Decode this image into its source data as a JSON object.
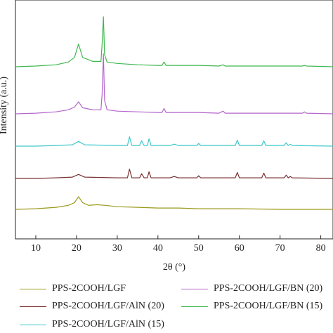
{
  "chart_data": {
    "type": "line",
    "xlabel": "2θ (°)",
    "ylabel": "Intensity (a.u.)",
    "xlim": [
      5,
      83
    ],
    "xticks": [
      10,
      20,
      30,
      40,
      50,
      60,
      70,
      80
    ],
    "series": [
      {
        "name": "PPS-2COOH/LGF",
        "color": "#9a9a1c",
        "points": [
          [
            5,
            0
          ],
          [
            10,
            1
          ],
          [
            15,
            3
          ],
          [
            18,
            6
          ],
          [
            19.5,
            10
          ],
          [
            20.5,
            19
          ],
          [
            21.5,
            10
          ],
          [
            23,
            6
          ],
          [
            25,
            7
          ],
          [
            27,
            6
          ],
          [
            30,
            4
          ],
          [
            35,
            3
          ],
          [
            40,
            2
          ],
          [
            45,
            2
          ],
          [
            50,
            1
          ],
          [
            60,
            1
          ],
          [
            70,
            0
          ],
          [
            83,
            0
          ]
        ]
      },
      {
        "name": "PPS-2COOH/LGF/AlN (20)",
        "color": "#7a3030",
        "points": [
          [
            5,
            0
          ],
          [
            10,
            0
          ],
          [
            15,
            1
          ],
          [
            19,
            2
          ],
          [
            20.5,
            6
          ],
          [
            22,
            2
          ],
          [
            30,
            1
          ],
          [
            32.5,
            1
          ],
          [
            33,
            14
          ],
          [
            33.6,
            1
          ],
          [
            35.5,
            1
          ],
          [
            36,
            7
          ],
          [
            36.6,
            1
          ],
          [
            37.4,
            1
          ],
          [
            37.8,
            10
          ],
          [
            38.3,
            1
          ],
          [
            43,
            1
          ],
          [
            44,
            3
          ],
          [
            45,
            1
          ],
          [
            49.5,
            1
          ],
          [
            50,
            4
          ],
          [
            50.5,
            1
          ],
          [
            59,
            1
          ],
          [
            59.5,
            9
          ],
          [
            60,
            1
          ],
          [
            65.5,
            1
          ],
          [
            66,
            8
          ],
          [
            66.5,
            1
          ],
          [
            71,
            1
          ],
          [
            71.5,
            5
          ],
          [
            72,
            1
          ],
          [
            72.5,
            3
          ],
          [
            73,
            1
          ],
          [
            83,
            0
          ]
        ]
      },
      {
        "name": "PPS-2COOH/LGF/AlN (15)",
        "color": "#3ec8c8",
        "points": [
          [
            5,
            0
          ],
          [
            10,
            0
          ],
          [
            15,
            1
          ],
          [
            19,
            2
          ],
          [
            20.5,
            7
          ],
          [
            22,
            2
          ],
          [
            30,
            1
          ],
          [
            32.5,
            1
          ],
          [
            33,
            14
          ],
          [
            33.6,
            1
          ],
          [
            35.5,
            1
          ],
          [
            36,
            8
          ],
          [
            36.6,
            1
          ],
          [
            37.4,
            1
          ],
          [
            37.8,
            11
          ],
          [
            38.3,
            1
          ],
          [
            43,
            1
          ],
          [
            44,
            3
          ],
          [
            45,
            1
          ],
          [
            49.5,
            1
          ],
          [
            50,
            4
          ],
          [
            50.5,
            1
          ],
          [
            59,
            1
          ],
          [
            59.5,
            9
          ],
          [
            60,
            1
          ],
          [
            65.5,
            1
          ],
          [
            66,
            8
          ],
          [
            66.5,
            1
          ],
          [
            71,
            1
          ],
          [
            71.5,
            5
          ],
          [
            72,
            1
          ],
          [
            72.5,
            3
          ],
          [
            73,
            1
          ],
          [
            83,
            0
          ]
        ]
      },
      {
        "name": "PPS-2COOH/LGF/BN (20)",
        "color": "#b366cc",
        "points": [
          [
            5,
            0
          ],
          [
            10,
            1
          ],
          [
            15,
            3
          ],
          [
            18,
            6
          ],
          [
            19.5,
            10
          ],
          [
            20.5,
            18
          ],
          [
            21.5,
            9
          ],
          [
            24,
            6
          ],
          [
            26,
            6
          ],
          [
            26.3,
            30
          ],
          [
            26.6,
            90
          ],
          [
            26.9,
            20
          ],
          [
            27.5,
            6
          ],
          [
            30,
            4
          ],
          [
            35,
            3
          ],
          [
            40,
            2
          ],
          [
            41,
            2
          ],
          [
            41.5,
            8
          ],
          [
            42,
            2
          ],
          [
            44,
            2
          ],
          [
            50,
            2
          ],
          [
            55,
            1
          ],
          [
            56,
            4
          ],
          [
            56.5,
            1
          ],
          [
            60,
            1
          ],
          [
            70,
            1
          ],
          [
            75.5,
            1
          ],
          [
            76,
            3
          ],
          [
            76.5,
            1
          ],
          [
            83,
            0
          ]
        ]
      },
      {
        "name": "PPS-2COOH/LGF/BN (15)",
        "color": "#3fb84f",
        "points": [
          [
            5,
            0
          ],
          [
            10,
            1
          ],
          [
            15,
            3
          ],
          [
            18,
            7
          ],
          [
            19.5,
            14
          ],
          [
            20.5,
            34
          ],
          [
            21.5,
            14
          ],
          [
            24,
            8
          ],
          [
            26,
            8
          ],
          [
            26.3,
            35
          ],
          [
            26.6,
            75
          ],
          [
            26.9,
            18
          ],
          [
            27.5,
            7
          ],
          [
            30,
            5
          ],
          [
            35,
            3
          ],
          [
            40,
            2
          ],
          [
            41,
            2
          ],
          [
            41.5,
            7
          ],
          [
            42,
            2
          ],
          [
            44,
            2
          ],
          [
            50,
            2
          ],
          [
            55,
            1
          ],
          [
            56,
            3
          ],
          [
            56.5,
            1
          ],
          [
            60,
            1
          ],
          [
            70,
            1
          ],
          [
            75.5,
            1
          ],
          [
            76,
            2
          ],
          [
            76.5,
            1
          ],
          [
            83,
            0
          ]
        ]
      }
    ],
    "legend": {
      "position": "bottom",
      "items": [
        {
          "label": "PPS-2COOH/LGF",
          "color": "#9a9a1c"
        },
        {
          "label": "PPS-2COOH/LGF/AlN (20)",
          "color": "#7a3030"
        },
        {
          "label": "PPS-2COOH/LGF/AlN (15)",
          "color": "#3ec8c8"
        },
        {
          "label": "PPS-2COOH/LGF/BN (20)",
          "color": "#b366cc"
        },
        {
          "label": "PPS-2COOH/LGF/BN (15)",
          "color": "#3fb84f"
        }
      ]
    }
  }
}
